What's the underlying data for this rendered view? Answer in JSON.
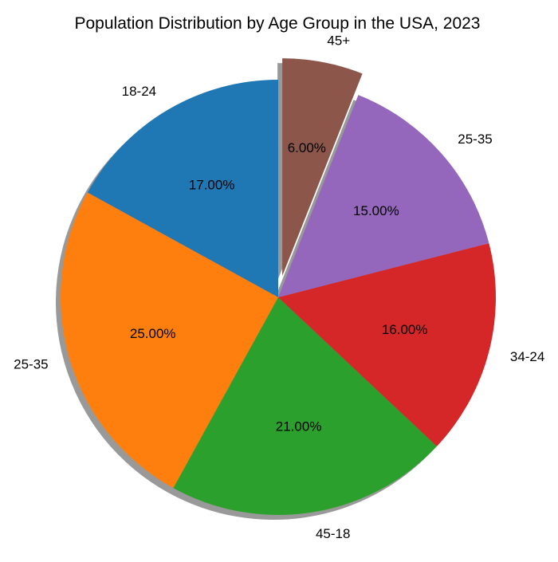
{
  "chart_data": {
    "type": "pie",
    "title": "Population Distribution by Age Group in the USA, 2023",
    "slices": [
      {
        "label": "18-24",
        "value": 17,
        "pct_label": "17.00%",
        "color": "#1f77b4",
        "explode": false
      },
      {
        "label": "25-35",
        "value": 25,
        "pct_label": "25.00%",
        "color": "#ff7f0e",
        "explode": false
      },
      {
        "label": "45-18",
        "value": 21,
        "pct_label": "21.00%",
        "color": "#2ca02c",
        "explode": false
      },
      {
        "label": "34-24",
        "value": 16,
        "pct_label": "16.00%",
        "color": "#d62728",
        "explode": false
      },
      {
        "label": "25-35",
        "value": 15,
        "pct_label": "15.00%",
        "color": "#9467bd",
        "explode": false
      },
      {
        "label": "45+",
        "value": 6,
        "pct_label": "6.00%",
        "color": "#8c564b",
        "explode": true
      }
    ],
    "start_angle_deg": 90,
    "direction": "counterclockwise",
    "shadow": true,
    "legend": "none"
  }
}
